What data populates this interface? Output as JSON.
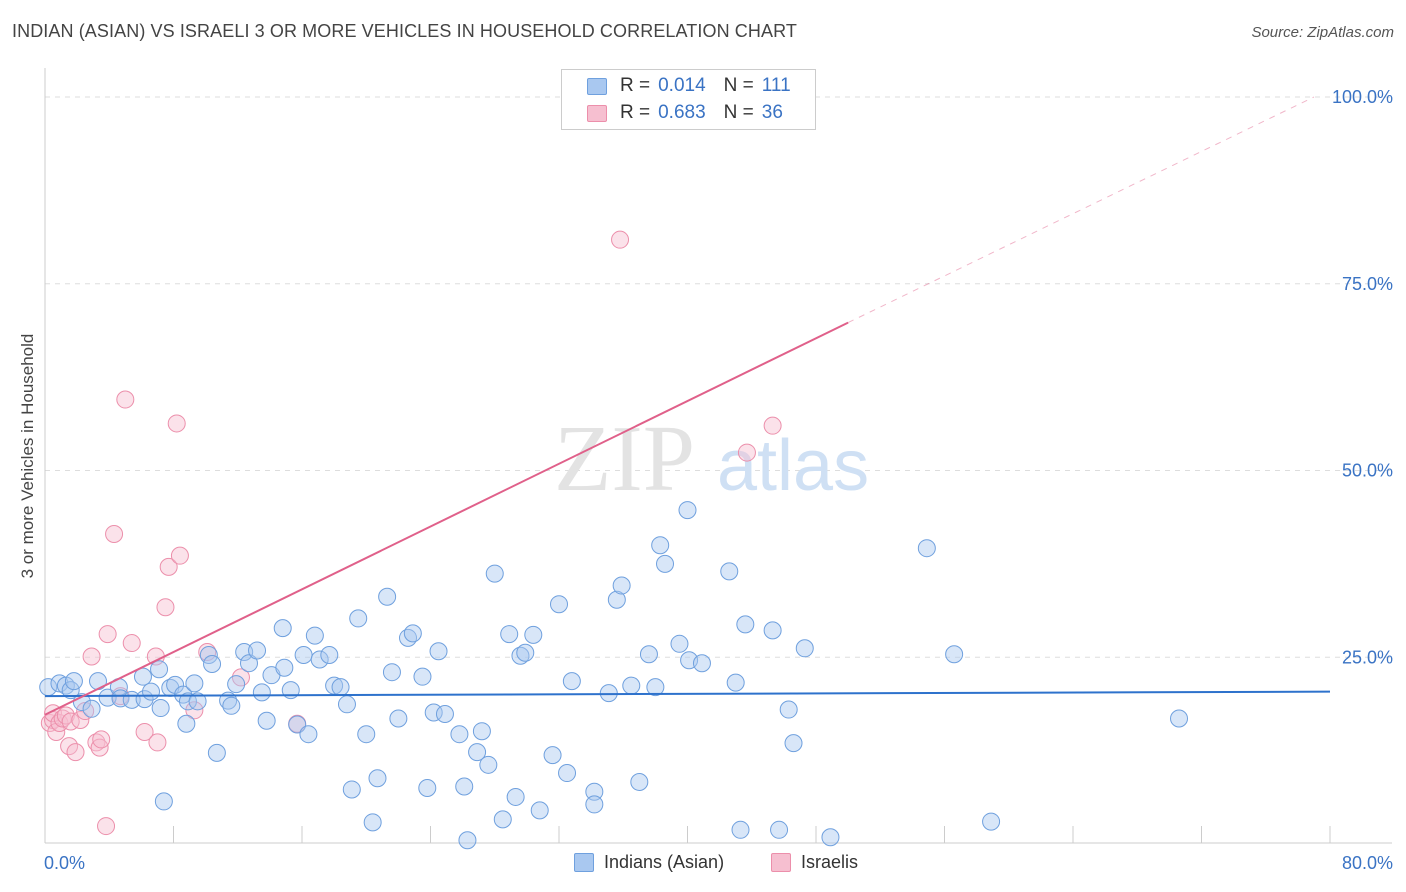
{
  "title": "INDIAN (ASIAN) VS ISRAELI 3 OR MORE VEHICLES IN HOUSEHOLD CORRELATION CHART",
  "source": "Source: ZipAtlas.com",
  "watermark": {
    "zip": "ZIP",
    "atlas": "atlas"
  },
  "legend_top": [
    {
      "r_label": "R =",
      "r_value": "0.014",
      "n_label": "N =",
      "n_value": "111"
    },
    {
      "r_label": "R =",
      "r_value": "0.683",
      "n_label": "N =",
      "n_value": "36"
    }
  ],
  "legend_bottom": [
    "Indians (Asian)",
    "Israelis"
  ],
  "colors": {
    "blue_fill": "#a9c8f0",
    "blue_stroke": "#6fa0de",
    "blue_line": "#2e72cc",
    "pink_fill": "#f6bfd0",
    "pink_stroke": "#ec8fab",
    "pink_line": "#e0608a",
    "axis_text": "#3a73c4",
    "grid": "#dddddd"
  },
  "chart_data": {
    "type": "scatter",
    "title": "INDIAN (ASIAN) VS ISRAELI 3 OR MORE VEHICLES IN HOUSEHOLD CORRELATION CHART",
    "xlabel": "",
    "ylabel": "3 or more Vehicles in Household",
    "xlim": [
      0,
      80
    ],
    "ylim": [
      0,
      100
    ],
    "x_tick_labels": [
      {
        "value": 0,
        "label": "0.0%"
      },
      {
        "value": 80,
        "label": "80.0%"
      }
    ],
    "y_tick_labels": [
      {
        "value": 25,
        "label": "25.0%"
      },
      {
        "value": 50,
        "label": "50.0%"
      },
      {
        "value": 75,
        "label": "75.0%"
      },
      {
        "value": 100,
        "label": "100.0%"
      }
    ],
    "series": [
      {
        "name": "Indians (Asian)",
        "r": 0.014,
        "n": 111,
        "trend": {
          "x0": 0,
          "y0": 19.8,
          "x1": 80,
          "y1": 20.4
        },
        "points": [
          [
            0.2,
            21.0
          ],
          [
            0.9,
            21.5
          ],
          [
            1.3,
            21.2
          ],
          [
            1.6,
            20.6
          ],
          [
            1.8,
            21.8
          ],
          [
            2.3,
            19.0
          ],
          [
            2.9,
            18.1
          ],
          [
            3.3,
            21.8
          ],
          [
            3.9,
            19.6
          ],
          [
            4.6,
            21.0
          ],
          [
            4.7,
            19.5
          ],
          [
            5.4,
            19.3
          ],
          [
            6.2,
            19.4
          ],
          [
            6.1,
            22.4
          ],
          [
            6.6,
            20.4
          ],
          [
            7.1,
            23.4
          ],
          [
            7.2,
            18.2
          ],
          [
            7.4,
            5.7
          ],
          [
            7.8,
            20.9
          ],
          [
            8.1,
            21.3
          ],
          [
            8.6,
            20.0
          ],
          [
            8.8,
            16.1
          ],
          [
            8.9,
            19.1
          ],
          [
            9.3,
            21.5
          ],
          [
            9.5,
            19.1
          ],
          [
            10.2,
            25.3
          ],
          [
            10.4,
            24.1
          ],
          [
            10.7,
            12.2
          ],
          [
            11.4,
            19.2
          ],
          [
            11.6,
            18.5
          ],
          [
            11.9,
            21.4
          ],
          [
            12.4,
            25.7
          ],
          [
            12.7,
            24.2
          ],
          [
            13.2,
            25.9
          ],
          [
            13.5,
            20.3
          ],
          [
            13.8,
            16.5
          ],
          [
            14.1,
            22.6
          ],
          [
            14.8,
            28.9
          ],
          [
            14.9,
            23.6
          ],
          [
            15.3,
            20.6
          ],
          [
            15.7,
            16.0
          ],
          [
            16.1,
            25.3
          ],
          [
            16.4,
            14.7
          ],
          [
            16.8,
            27.9
          ],
          [
            17.1,
            24.7
          ],
          [
            17.7,
            25.3
          ],
          [
            18.0,
            21.2
          ],
          [
            18.4,
            21.0
          ],
          [
            18.8,
            18.7
          ],
          [
            19.1,
            7.3
          ],
          [
            19.5,
            30.2
          ],
          [
            20.0,
            14.7
          ],
          [
            20.4,
            2.9
          ],
          [
            20.7,
            8.8
          ],
          [
            21.3,
            33.1
          ],
          [
            21.6,
            23.0
          ],
          [
            22.0,
            16.8
          ],
          [
            22.6,
            27.6
          ],
          [
            22.9,
            28.2
          ],
          [
            23.5,
            22.4
          ],
          [
            23.8,
            7.5
          ],
          [
            24.2,
            17.6
          ],
          [
            24.5,
            25.8
          ],
          [
            24.9,
            17.4
          ],
          [
            25.8,
            14.7
          ],
          [
            26.1,
            7.7
          ],
          [
            26.3,
            0.5
          ],
          [
            26.9,
            12.3
          ],
          [
            27.2,
            15.1
          ],
          [
            27.6,
            10.6
          ],
          [
            28.0,
            36.2
          ],
          [
            28.5,
            3.3
          ],
          [
            28.9,
            28.1
          ],
          [
            29.3,
            6.3
          ],
          [
            29.6,
            25.2
          ],
          [
            29.9,
            25.6
          ],
          [
            30.4,
            28.0
          ],
          [
            30.8,
            4.5
          ],
          [
            31.6,
            11.9
          ],
          [
            32.0,
            32.1
          ],
          [
            32.5,
            9.5
          ],
          [
            32.8,
            21.8
          ],
          [
            34.2,
            7.0
          ],
          [
            34.2,
            5.3
          ],
          [
            35.1,
            20.2
          ],
          [
            35.6,
            32.7
          ],
          [
            35.9,
            34.6
          ],
          [
            36.5,
            21.2
          ],
          [
            37.0,
            8.3
          ],
          [
            37.6,
            25.4
          ],
          [
            38.0,
            21.0
          ],
          [
            38.3,
            40.0
          ],
          [
            38.6,
            37.5
          ],
          [
            39.5,
            26.8
          ],
          [
            40.0,
            44.7
          ],
          [
            40.1,
            24.6
          ],
          [
            40.9,
            24.2
          ],
          [
            42.6,
            36.5
          ],
          [
            43.0,
            21.6
          ],
          [
            43.3,
            1.9
          ],
          [
            43.6,
            29.4
          ],
          [
            45.3,
            28.6
          ],
          [
            45.7,
            1.9
          ],
          [
            46.3,
            18.0
          ],
          [
            46.6,
            13.5
          ],
          [
            47.3,
            26.2
          ],
          [
            48.9,
            0.9
          ],
          [
            54.9,
            39.6
          ],
          [
            56.6,
            25.4
          ],
          [
            58.9,
            3.0
          ],
          [
            70.6,
            16.8
          ]
        ]
      },
      {
        "name": "Israelis",
        "r": 0.683,
        "n": 36,
        "trend": {
          "x0": 0,
          "y0": 17.3,
          "x1": 50,
          "y1": 69.8,
          "dashed_to": {
            "x": 79,
            "y": 100
          }
        },
        "points": [
          [
            0.3,
            16.2
          ],
          [
            0.5,
            16.6
          ],
          [
            0.5,
            17.5
          ],
          [
            0.7,
            15.0
          ],
          [
            0.9,
            16.2
          ],
          [
            1.1,
            16.8
          ],
          [
            1.3,
            17.2
          ],
          [
            1.5,
            13.1
          ],
          [
            1.6,
            16.4
          ],
          [
            1.9,
            12.3
          ],
          [
            2.2,
            16.6
          ],
          [
            2.5,
            17.8
          ],
          [
            2.9,
            25.1
          ],
          [
            3.2,
            13.6
          ],
          [
            3.4,
            12.9
          ],
          [
            3.5,
            14.0
          ],
          [
            3.8,
            2.4
          ],
          [
            3.9,
            28.1
          ],
          [
            4.3,
            41.5
          ],
          [
            4.7,
            19.8
          ],
          [
            5.0,
            59.5
          ],
          [
            5.4,
            26.9
          ],
          [
            6.2,
            15.0
          ],
          [
            6.9,
            25.1
          ],
          [
            7.0,
            13.6
          ],
          [
            7.5,
            31.7
          ],
          [
            7.7,
            37.1
          ],
          [
            8.2,
            56.3
          ],
          [
            8.4,
            38.6
          ],
          [
            9.3,
            17.9
          ],
          [
            10.1,
            25.7
          ],
          [
            12.2,
            22.3
          ],
          [
            15.7,
            16.1
          ],
          [
            35.8,
            80.9
          ],
          [
            43.7,
            52.4
          ],
          [
            45.3,
            56.0
          ]
        ]
      }
    ]
  }
}
